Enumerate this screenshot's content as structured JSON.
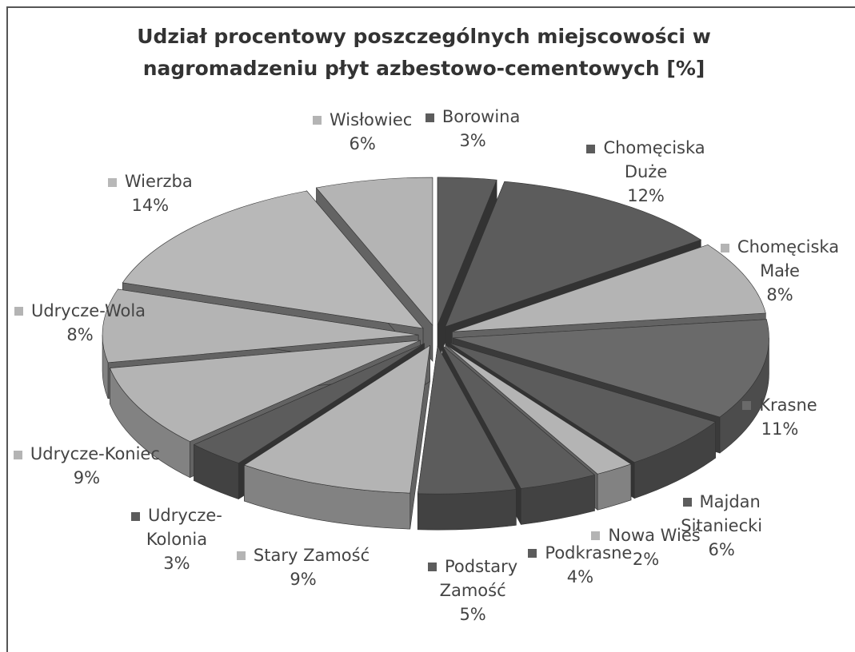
{
  "chart_data": {
    "type": "pie",
    "title": "Udział procentowy poszczególnych miejscowości w nagromadzeniu płyt azbestowo-cementowych [%]",
    "categories": [
      "Borowina",
      "Chomęciska Duże",
      "Chomęciska Małe",
      "Krasne",
      "Majdan Sitaniecki",
      "Nowa Wieś",
      "Podkrasne",
      "Podstary Zamość",
      "Stary Zamość",
      "Udrycze-Kolonia",
      "Udrycze-Koniec",
      "Udrycze-Wola",
      "Wierzba",
      "Wisłowiec"
    ],
    "values": [
      3,
      12,
      8,
      11,
      6,
      2,
      4,
      5,
      9,
      3,
      9,
      8,
      14,
      6
    ],
    "value_labels": [
      "3%",
      "12%",
      "8%",
      "11%",
      "6%",
      "2%",
      "4%",
      "5%",
      "9%",
      "3%",
      "9%",
      "8%",
      "14%",
      "6%"
    ],
    "colors": [
      "#5c5c5c",
      "#5c5c5c",
      "#b4b4b4",
      "#6a6a6a",
      "#5c5c5c",
      "#b4b4b4",
      "#5c5c5c",
      "#5c5c5c",
      "#b4b4b4",
      "#5c5c5c",
      "#b4b4b4",
      "#b4b4b4",
      "#b8b8b8",
      "#b4b4b4"
    ],
    "legend": true
  }
}
